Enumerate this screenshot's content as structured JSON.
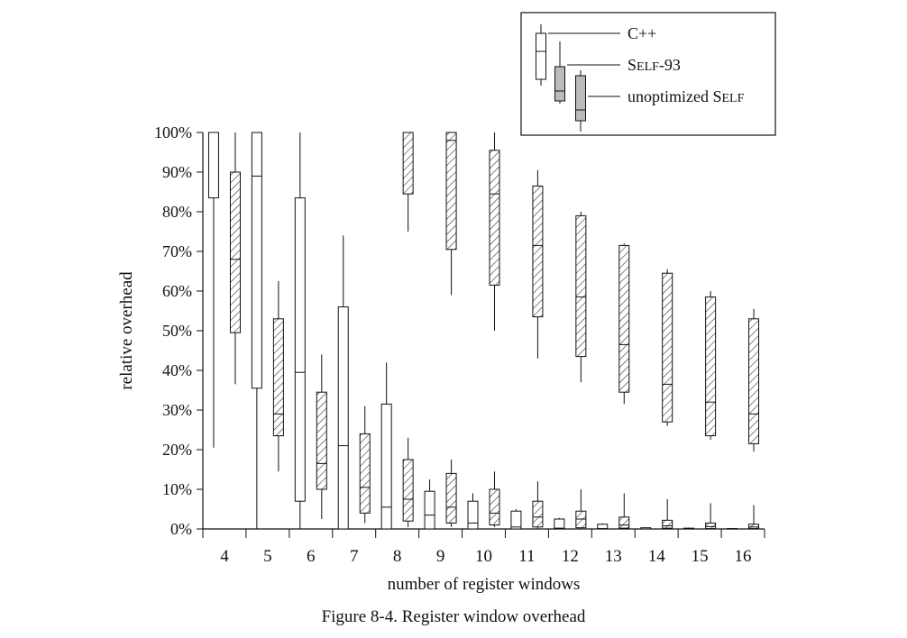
{
  "chart_data": {
    "type": "box",
    "ylabel": "relative overhead",
    "xlabel": "number of register windows",
    "caption": "Figure 8-4.  Register window overhead",
    "ylim": [
      0,
      100
    ],
    "yticks": [
      "0%",
      "10%",
      "20%",
      "30%",
      "40%",
      "50%",
      "60%",
      "70%",
      "80%",
      "90%",
      "100%"
    ],
    "categories": [
      "4",
      "5",
      "6",
      "7",
      "8",
      "9",
      "10",
      "11",
      "12",
      "13",
      "14",
      "15",
      "16"
    ],
    "legend_position": "top-right",
    "series": [
      {
        "name": "C++",
        "fill": "white",
        "boxes": [
          {
            "x": "4",
            "min": 20.5,
            "q1": 83.5,
            "median": 100,
            "q3": 100,
            "max": 100
          },
          {
            "x": "5",
            "min": 0,
            "q1": 35.5,
            "median": 89,
            "q3": 100,
            "max": 100
          },
          {
            "x": "6",
            "min": 0,
            "q1": 7,
            "median": 39.5,
            "q3": 83.5,
            "max": 100
          },
          {
            "x": "7",
            "min": 0,
            "q1": 0,
            "median": 21,
            "q3": 56,
            "max": 74
          },
          {
            "x": "8",
            "min": 0,
            "q1": 0,
            "median": 5.5,
            "q3": 31.5,
            "max": 42
          },
          {
            "x": "9",
            "min": 0,
            "q1": 0,
            "median": 3.5,
            "q3": 9.5,
            "max": 12.5
          },
          {
            "x": "10",
            "min": 0,
            "q1": 0,
            "median": 1.5,
            "q3": 7,
            "max": 9
          },
          {
            "x": "11",
            "min": 0,
            "q1": 0,
            "median": 0.5,
            "q3": 4.5,
            "max": 5
          },
          {
            "x": "12",
            "min": 0,
            "q1": 0,
            "median": 0.2,
            "q3": 2.5,
            "max": 2.8
          },
          {
            "x": "13",
            "min": 0,
            "q1": 0,
            "median": 0.1,
            "q3": 1.2,
            "max": 1.4
          },
          {
            "x": "14",
            "min": 0,
            "q1": 0,
            "median": 0,
            "q3": 0.3,
            "max": 0.4
          },
          {
            "x": "15",
            "min": 0,
            "q1": 0,
            "median": 0,
            "q3": 0.2,
            "max": 0.3
          },
          {
            "x": "16",
            "min": 0,
            "q1": 0,
            "median": 0,
            "q3": 0.1,
            "max": 0.2
          }
        ]
      },
      {
        "name": "SELF-93",
        "fill": "hatched",
        "boxes": [
          {
            "x": "4",
            "min": 36.5,
            "q1": 49.5,
            "median": 68,
            "q3": 90,
            "max": 100
          },
          {
            "x": "5",
            "min": 14.5,
            "q1": 23.5,
            "median": 29,
            "q3": 53,
            "max": 62.5
          },
          {
            "x": "6",
            "min": 2.5,
            "q1": 10,
            "median": 16.5,
            "q3": 34.5,
            "max": 44
          },
          {
            "x": "7",
            "min": 1.5,
            "q1": 4,
            "median": 10.5,
            "q3": 24,
            "max": 31
          },
          {
            "x": "8",
            "min": 0.5,
            "q1": 2,
            "median": 7.5,
            "q3": 17.5,
            "max": 23
          },
          {
            "x": "9",
            "min": 0.5,
            "q1": 1.5,
            "median": 5.5,
            "q3": 14,
            "max": 17.5
          },
          {
            "x": "10",
            "min": 0.5,
            "q1": 1,
            "median": 4,
            "q3": 10,
            "max": 14.5
          },
          {
            "x": "11",
            "min": 0,
            "q1": 0.5,
            "median": 3,
            "q3": 7,
            "max": 12
          },
          {
            "x": "12",
            "min": 0,
            "q1": 0.3,
            "median": 2.5,
            "q3": 4.5,
            "max": 10
          },
          {
            "x": "13",
            "min": 0,
            "q1": 0.2,
            "median": 1,
            "q3": 3,
            "max": 9
          },
          {
            "x": "14",
            "min": 0,
            "q1": 0.2,
            "median": 0.8,
            "q3": 2.2,
            "max": 7.5
          },
          {
            "x": "15",
            "min": 0,
            "q1": 0.1,
            "median": 0.6,
            "q3": 1.5,
            "max": 6.5
          },
          {
            "x": "16",
            "min": 0,
            "q1": 0.1,
            "median": 0.5,
            "q3": 1.2,
            "max": 6
          }
        ]
      },
      {
        "name": "unoptimized SELF",
        "fill": "gray",
        "boxes": [
          {
            "x": "8",
            "min": 75,
            "q1": 84.5,
            "median": 100,
            "q3": 100,
            "max": 100
          },
          {
            "x": "9",
            "min": 59,
            "q1": 70.5,
            "median": 98,
            "q3": 100,
            "max": 100
          },
          {
            "x": "10",
            "min": 50,
            "q1": 61.5,
            "median": 84.5,
            "q3": 95.5,
            "max": 100
          },
          {
            "x": "11",
            "min": 43,
            "q1": 53.5,
            "median": 71.5,
            "q3": 86.5,
            "max": 90.5
          },
          {
            "x": "12",
            "min": 37,
            "q1": 43.5,
            "median": 58.5,
            "q3": 79,
            "max": 80
          },
          {
            "x": "13",
            "min": 31.5,
            "q1": 34.5,
            "median": 46.5,
            "q3": 71.5,
            "max": 72
          },
          {
            "x": "14",
            "min": 26,
            "q1": 27,
            "median": 36.5,
            "q3": 64.5,
            "max": 65.5
          },
          {
            "x": "15",
            "min": 22.5,
            "q1": 23.5,
            "median": 32,
            "q3": 58.5,
            "max": 60
          },
          {
            "x": "16",
            "min": 19.5,
            "q1": 21.5,
            "median": 29,
            "q3": 53,
            "max": 55.5
          }
        ]
      }
    ]
  },
  "legend": {
    "items": [
      {
        "name": "C++",
        "label_main": "C++",
        "label_small": "",
        "label_tail": ""
      },
      {
        "name": "SELF-93",
        "label_main": "S",
        "label_small": "ELF",
        "label_tail": "-93"
      },
      {
        "name": "unoptimized SELF",
        "label_main": "unoptimized S",
        "label_small": "ELF",
        "label_tail": ""
      }
    ]
  },
  "colors": {
    "axis": "#111111",
    "box_white": "#ffffff",
    "box_gray": "#bbbbbb",
    "hatch": "#444444"
  }
}
